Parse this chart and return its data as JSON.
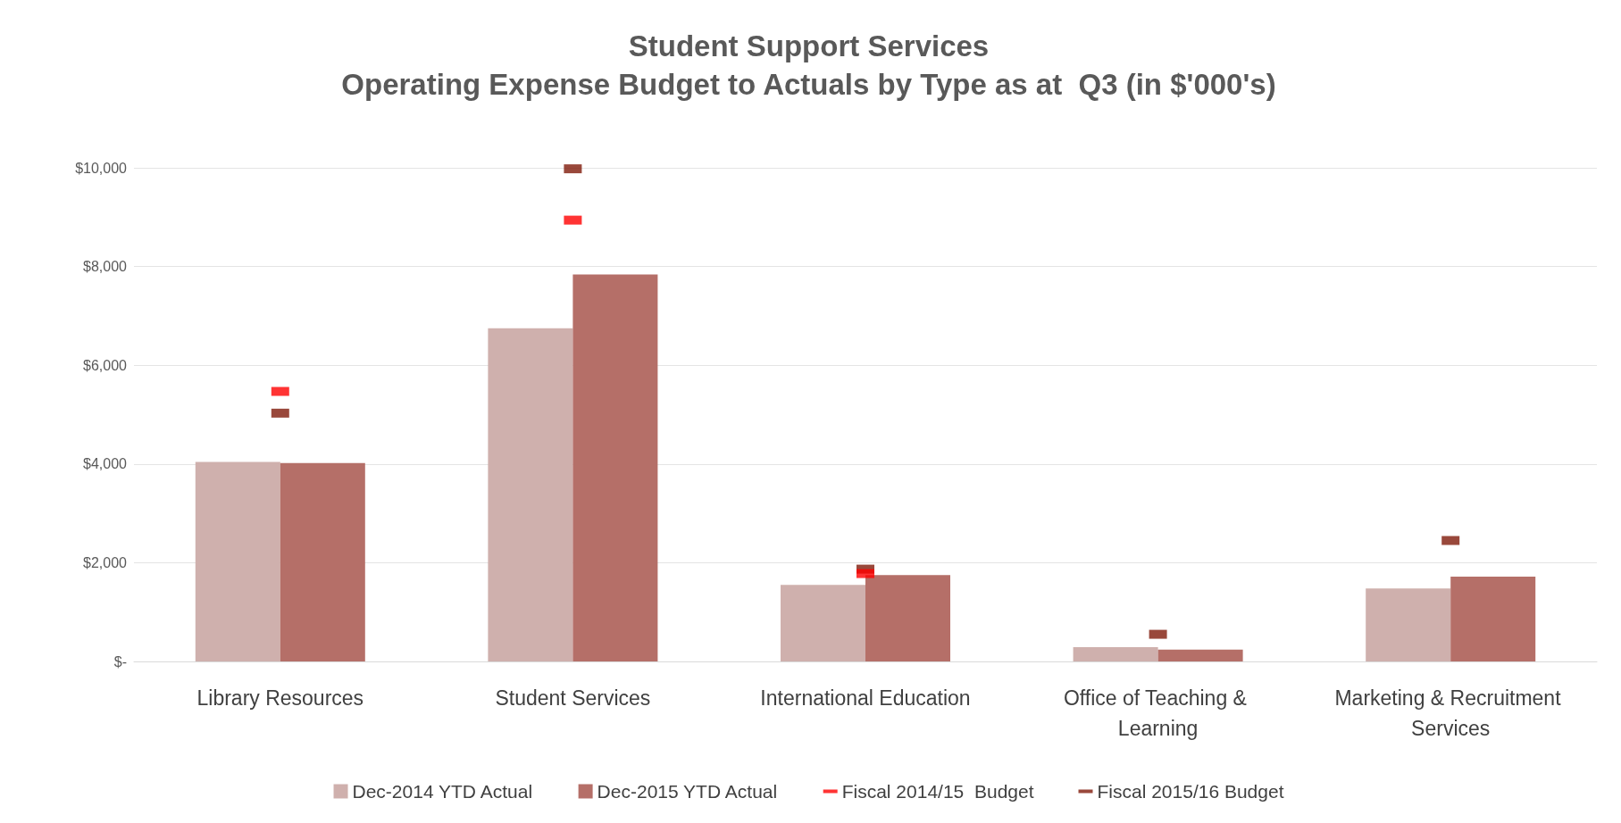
{
  "chart_data": {
    "type": "bar",
    "title": "Student Support Services",
    "subtitle": "Operating Expense Budget to Actuals by Type as at  Q3 (in $'000's)",
    "categories": [
      "Library Resources",
      "Student Services",
      "International Education",
      "Office of Teaching & Learning",
      "Marketing & Recruitment Services"
    ],
    "series": [
      {
        "name": "Dec-2014 YTD Actual",
        "color": "#cfb0ad",
        "values": [
          4040,
          6750,
          1550,
          290,
          1480
        ]
      },
      {
        "name": "Dec-2015 YTD Actual",
        "color": "#b56f68",
        "values": [
          4020,
          7840,
          1750,
          240,
          1720
        ]
      },
      {
        "name": "Fiscal 2014/15  Budget",
        "type": "scatter",
        "marker": "square",
        "color": "#ff0000",
        "values": [
          5470,
          8940,
          1780,
          null,
          null
        ]
      },
      {
        "name": "Fiscal 2015/16 Budget",
        "type": "scatter",
        "marker": "square",
        "color": "#7f1a0a",
        "values": [
          5030,
          9980,
          1870,
          550,
          2450
        ]
      }
    ],
    "ylim": [
      0,
      10000
    ],
    "yticks": [
      {
        "value": 0,
        "label": "$-"
      },
      {
        "value": 2000,
        "label": "$2,000"
      },
      {
        "value": 4000,
        "label": "$4,000"
      },
      {
        "value": 6000,
        "label": "$6,000"
      },
      {
        "value": 8000,
        "label": "$8,000"
      },
      {
        "value": 10000,
        "label": "$10,000"
      }
    ],
    "grid": "y",
    "legend": "bottom"
  }
}
